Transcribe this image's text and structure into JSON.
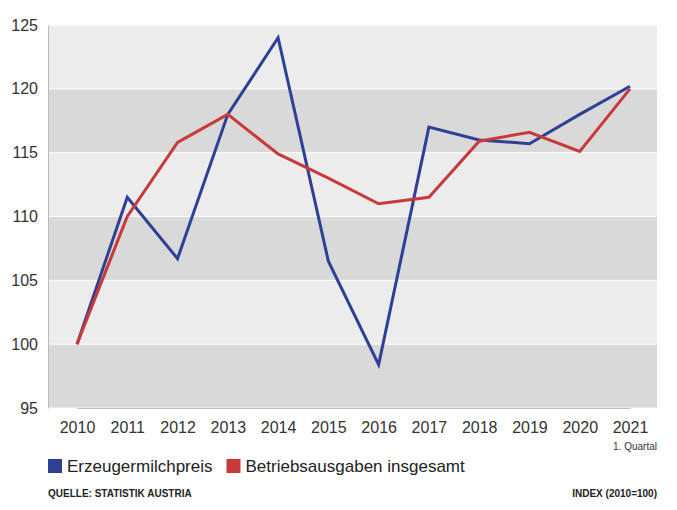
{
  "chart_data": {
    "type": "line",
    "categories": [
      "2010",
      "2011",
      "2012",
      "2013",
      "2014",
      "2015",
      "2016",
      "2017",
      "2018",
      "2019",
      "2020",
      "2021"
    ],
    "series": [
      {
        "name": "Erzeugermilchpreis",
        "color": "#2e3f94",
        "values": [
          100,
          111.5,
          106.7,
          118,
          124,
          106.5,
          98.4,
          117,
          116,
          115.7,
          118,
          120.2
        ]
      },
      {
        "name": "Betriebsausgaben insgesamt",
        "color": "#c8393a",
        "values": [
          100,
          110,
          115.8,
          118,
          114.9,
          113,
          111,
          111.5,
          115.9,
          116.6,
          115.1,
          120
        ]
      }
    ],
    "ylim": [
      95,
      125
    ],
    "yticks": [
      95,
      100,
      105,
      110,
      115,
      120,
      125
    ],
    "grid": true,
    "legend": "bottom",
    "annotations": [
      "1. Quartal"
    ],
    "source": "QUELLE: STATISTIK AUSTRIA",
    "note": "INDEX (2010=100)"
  }
}
